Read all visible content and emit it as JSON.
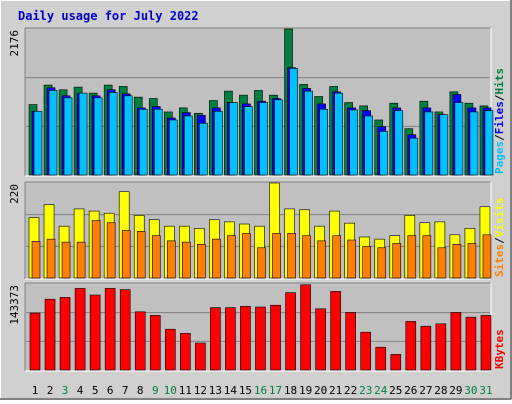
{
  "title": "Daily usage for July 2022",
  "colors": {
    "background": "#d0d0d0",
    "plot_background": "#c0c0c0",
    "hits": "#008040",
    "files": "#0000ff",
    "pages": "#00c0ff",
    "visits": "#ffff00",
    "sites": "#ff8000",
    "kbytes": "#ff0000",
    "title": "#0000cc"
  },
  "chart_data": [
    {
      "type": "bar",
      "panel": "hits-files-pages",
      "ymax_label": "2176",
      "ymax": 2176,
      "right_labels": [
        "Pages",
        "/",
        "Files",
        "/",
        "Hits"
      ],
      "categories": [
        "1",
        "2",
        "3",
        "4",
        "5",
        "6",
        "7",
        "8",
        "9",
        "10",
        "11",
        "12",
        "13",
        "14",
        "15",
        "16",
        "17",
        "18",
        "19",
        "20",
        "21",
        "22",
        "23",
        "24",
        "25",
        "26",
        "27",
        "28",
        "29",
        "30",
        "31"
      ],
      "series": [
        {
          "name": "Hits",
          "values": [
            1050,
            1340,
            1270,
            1310,
            1220,
            1340,
            1320,
            1160,
            1140,
            940,
            1000,
            920,
            1110,
            1250,
            1190,
            1260,
            1190,
            2176,
            1350,
            1170,
            1320,
            1080,
            1030,
            820,
            1070,
            690,
            1100,
            940,
            1240,
            1070,
            1030
          ]
        },
        {
          "name": "Files",
          "values": [
            950,
            1300,
            1180,
            1220,
            1180,
            1270,
            1210,
            1000,
            1020,
            850,
            930,
            890,
            1000,
            1080,
            1060,
            1100,
            1140,
            1600,
            1290,
            1060,
            1240,
            1000,
            960,
            720,
            1000,
            600,
            1000,
            900,
            1200,
            1000,
            1000
          ]
        },
        {
          "name": "Pages",
          "values": [
            950,
            1260,
            1150,
            1220,
            1150,
            1230,
            1180,
            980,
            980,
            820,
            880,
            770,
            950,
            1080,
            1020,
            1080,
            1120,
            1590,
            1250,
            980,
            1220,
            970,
            880,
            650,
            960,
            550,
            940,
            900,
            1080,
            940,
            960
          ]
        }
      ]
    },
    {
      "type": "bar",
      "panel": "visits-sites",
      "ymax_label": "220",
      "ymax": 220,
      "right_labels": [
        "Sites",
        "/",
        "Visits"
      ],
      "categories": [
        "1",
        "2",
        "3",
        "4",
        "5",
        "6",
        "7",
        "8",
        "9",
        "10",
        "11",
        "12",
        "13",
        "14",
        "15",
        "16",
        "17",
        "18",
        "19",
        "20",
        "21",
        "22",
        "23",
        "24",
        "25",
        "26",
        "27",
        "28",
        "29",
        "30",
        "31"
      ],
      "series": [
        {
          "name": "Visits",
          "values": [
            140,
            170,
            120,
            160,
            155,
            150,
            200,
            145,
            135,
            120,
            120,
            115,
            135,
            130,
            125,
            120,
            220,
            160,
            158,
            120,
            155,
            127,
            95,
            90,
            98,
            145,
            128,
            130,
            100,
            115,
            165
          ]
        },
        {
          "name": "Sites",
          "values": [
            85,
            90,
            83,
            83,
            133,
            128,
            110,
            108,
            98,
            86,
            83,
            78,
            90,
            98,
            103,
            70,
            103,
            103,
            98,
            86,
            98,
            88,
            73,
            70,
            80,
            98,
            98,
            70,
            78,
            80,
            100
          ]
        }
      ]
    },
    {
      "type": "bar",
      "panel": "kbytes",
      "ymax_label": "143373",
      "ymax": 143373,
      "right_labels": [
        "KBytes"
      ],
      "categories": [
        "1",
        "2",
        "3",
        "4",
        "5",
        "6",
        "7",
        "8",
        "9",
        "10",
        "11",
        "12",
        "13",
        "14",
        "15",
        "16",
        "17",
        "18",
        "19",
        "20",
        "21",
        "22",
        "23",
        "24",
        "25",
        "26",
        "27",
        "28",
        "29",
        "30",
        "31"
      ],
      "series": [
        {
          "name": "KBytes",
          "values": [
            95000,
            118000,
            121000,
            136000,
            125000,
            136000,
            134000,
            97000,
            91000,
            68000,
            61000,
            45000,
            104000,
            104000,
            106000,
            105000,
            108000,
            129000,
            142000,
            102000,
            131000,
            96000,
            63000,
            38000,
            26000,
            81000,
            73000,
            77000,
            96000,
            88000,
            91000
          ]
        }
      ]
    }
  ],
  "day_label_colors": [
    "#000000",
    "#000000",
    "#008040",
    "#000000",
    "#000000",
    "#000000",
    "#000000",
    "#000000",
    "#008040",
    "#008040",
    "#000000",
    "#000000",
    "#000000",
    "#000000",
    "#000000",
    "#008040",
    "#008040",
    "#000000",
    "#000000",
    "#000000",
    "#000000",
    "#000000",
    "#008040",
    "#008040",
    "#000000",
    "#000000",
    "#000000",
    "#000000",
    "#000000",
    "#008040",
    "#008040"
  ]
}
